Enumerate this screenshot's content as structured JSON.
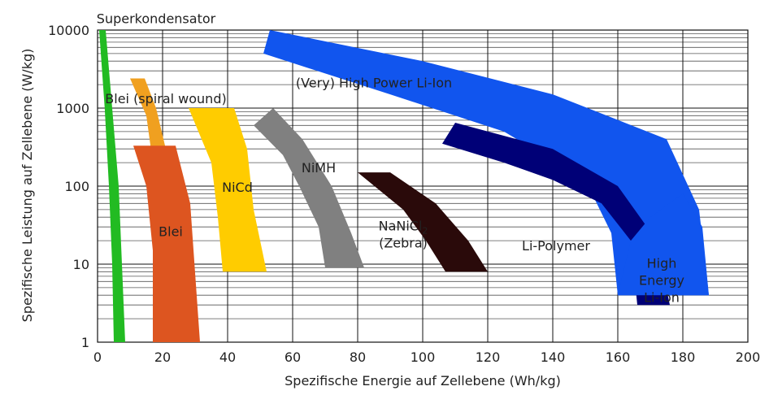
{
  "chart_data": {
    "type": "area",
    "title": "",
    "xlabel": "Spezifische Energie auf Zellebene (Wh/kg)",
    "ylabel": "Spezifische Leistung auf Zellebene (W/kg)",
    "xlim": [
      0,
      200
    ],
    "ylim": [
      1,
      10000
    ],
    "y_scale": "log",
    "grid": true,
    "x_ticks": [
      0,
      20,
      40,
      60,
      80,
      100,
      120,
      140,
      160,
      180,
      200
    ],
    "y_ticks": [
      {
        "value": 1,
        "label": "1"
      },
      {
        "value": 10,
        "label": "10"
      },
      {
        "value": 100,
        "label": "100"
      },
      {
        "value": 1000,
        "label": "1000"
      },
      {
        "value": 10000,
        "label": "10000"
      }
    ],
    "regions": [
      {
        "label": "Superkondensator",
        "color": "#22bb22",
        "polygon": [
          [
            0.5,
            10000
          ],
          [
            2.5,
            10000
          ],
          [
            4.5,
            1000
          ],
          [
            6.5,
            100
          ],
          [
            7.5,
            10
          ],
          [
            8.5,
            1
          ],
          [
            5,
            1
          ],
          [
            4.5,
            10
          ],
          [
            3.5,
            100
          ],
          [
            2.2,
            1000
          ]
        ],
        "label_pos": [
          18,
          12300
        ]
      },
      {
        "label": "Blei (spiral wound)",
        "color": "#f0a020",
        "polygon": [
          [
            10,
            2400
          ],
          [
            14.5,
            2400
          ],
          [
            18,
            1000
          ],
          [
            22,
            200
          ],
          [
            22,
            90
          ],
          [
            18.5,
            90
          ],
          [
            17,
            200
          ],
          [
            15,
            800
          ]
        ],
        "label_pos": [
          21,
          1150
        ]
      },
      {
        "label": "Blei",
        "color": "#dd5520",
        "polygon": [
          [
            11,
            330
          ],
          [
            24,
            330
          ],
          [
            28.5,
            60
          ],
          [
            31.5,
            1
          ],
          [
            17,
            1
          ],
          [
            17,
            15
          ],
          [
            15,
            100
          ]
        ],
        "label_pos": [
          22.5,
          23
        ]
      },
      {
        "label": "NiCd",
        "color": "#ffcc00",
        "polygon": [
          [
            28,
            1000
          ],
          [
            42,
            1000
          ],
          [
            46,
            300
          ],
          [
            48,
            50
          ],
          [
            52,
            8
          ],
          [
            38.5,
            8
          ],
          [
            37,
            40
          ],
          [
            35,
            200
          ]
        ],
        "label_pos": [
          43,
          85
        ]
      },
      {
        "label": "NiMH",
        "color": "#808080",
        "polygon": [
          [
            48,
            600
          ],
          [
            54,
            1000
          ],
          [
            63,
            400
          ],
          [
            72,
            100
          ],
          [
            78,
            25
          ],
          [
            82,
            9
          ],
          [
            70,
            9
          ],
          [
            68,
            30
          ],
          [
            62,
            100
          ],
          [
            57,
            250
          ]
        ],
        "label_pos": [
          68,
          150
        ]
      },
      {
        "label": "NaNiCl2",
        "label_line2": "(Zebra)",
        "color": "#2a0a0a",
        "polygon": [
          [
            80,
            150
          ],
          [
            90,
            150
          ],
          [
            104,
            60
          ],
          [
            114,
            20
          ],
          [
            120,
            8
          ],
          [
            107,
            8
          ],
          [
            101,
            20
          ],
          [
            94,
            50
          ]
        ],
        "label_pos": [
          94,
          27
        ]
      },
      {
        "label": "(Very) High Power Li-Ion",
        "color": "#1155ee",
        "polygon": [
          [
            51,
            5000
          ],
          [
            53,
            10000
          ],
          [
            100,
            4000
          ],
          [
            140,
            1500
          ],
          [
            175,
            400
          ],
          [
            185,
            50
          ],
          [
            188,
            4
          ],
          [
            160,
            4
          ],
          [
            158,
            25
          ],
          [
            150,
            120
          ],
          [
            125,
            500
          ],
          [
            90,
            1500
          ]
        ],
        "label_pos": [
          85,
          1850
        ]
      },
      {
        "label": "Li-Polymer",
        "color": "#000077",
        "polygon": [
          [
            106,
            350
          ],
          [
            110,
            650
          ],
          [
            140,
            300
          ],
          [
            160,
            100
          ],
          [
            172,
            20
          ],
          [
            176,
            3
          ],
          [
            166,
            3
          ],
          [
            164,
            20
          ],
          [
            155,
            60
          ],
          [
            140,
            120
          ],
          [
            125,
            200
          ]
        ],
        "label_pos": [
          141,
          15
        ]
      },
      {
        "label": "High",
        "label_line2": "Energy",
        "label_line3": "Li-Ion",
        "color": "#1155ee",
        "polygon": [
          [
            160,
            4
          ],
          [
            188,
            4
          ],
          [
            186,
            30
          ],
          [
            180,
            80
          ],
          [
            170,
            40
          ],
          [
            164,
            20
          ]
        ],
        "label_pos": [
          173.5,
          9
        ]
      }
    ]
  }
}
